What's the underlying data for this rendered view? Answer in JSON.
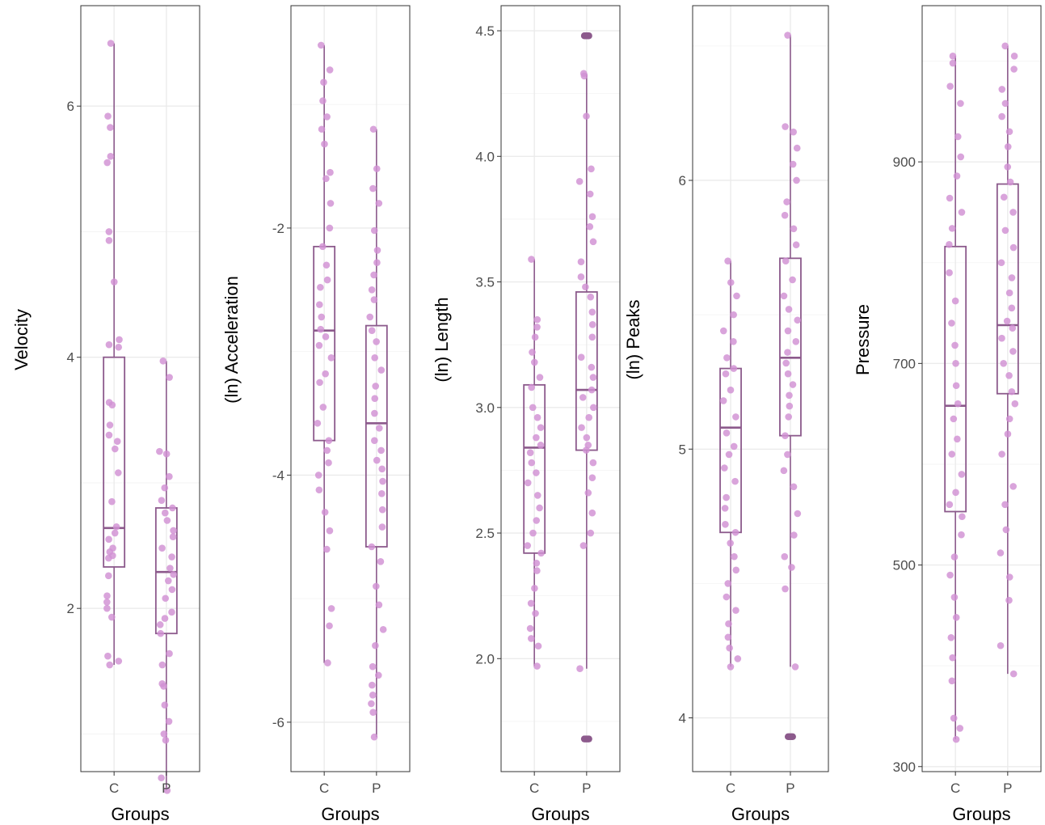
{
  "colors": {
    "box": "#8c5a8c",
    "point": "#d190d3",
    "outlier": "#8c5a8c"
  },
  "chart_data": [
    {
      "type": "box",
      "title": "",
      "xlabel": "Groups",
      "ylabel": "Velocity",
      "categories": [
        "C",
        "P"
      ],
      "ylim": [
        0.7,
        6.8
      ],
      "yticks": [
        2,
        4,
        6
      ],
      "ytick_labels": [
        "2",
        "4",
        "6"
      ],
      "boxes": [
        {
          "group": "C",
          "min": 1.55,
          "q1": 2.33,
          "median": 2.64,
          "q3": 4.0,
          "max": 6.5
        },
        {
          "group": "P",
          "min": 0.55,
          "q1": 1.8,
          "median": 2.29,
          "q3": 2.8,
          "max": 3.97
        }
      ],
      "points": {
        "C": [
          6.5,
          5.92,
          5.83,
          5.6,
          5.55,
          5.0,
          4.93,
          4.6,
          4.14,
          4.1,
          4.08,
          3.64,
          3.62,
          3.46,
          3.38,
          3.33,
          3.27,
          3.08,
          2.85,
          2.65,
          2.6,
          2.55,
          2.48,
          2.45,
          2.42,
          2.4,
          2.26,
          2.1,
          2.05,
          2.0,
          1.93,
          1.62,
          1.58,
          1.55
        ],
        "P": [
          3.97,
          3.84,
          3.25,
          3.23,
          3.05,
          2.96,
          2.86,
          2.8,
          2.76,
          2.7,
          2.62,
          2.57,
          2.48,
          2.41,
          2.32,
          2.27,
          2.22,
          2.15,
          2.08,
          1.97,
          1.92,
          1.87,
          1.8,
          1.64,
          1.55,
          1.4,
          1.38,
          1.23,
          1.1,
          1.0,
          0.95,
          0.65,
          0.55
        ]
      },
      "outliers": {
        "C": [],
        "P": []
      }
    },
    {
      "type": "box",
      "title": "",
      "xlabel": "Groups",
      "ylabel": "(ln) Acceleration",
      "categories": [
        "C",
        "P"
      ],
      "ylim": [
        -6.4,
        -0.2
      ],
      "yticks": [
        -6,
        -4,
        -2
      ],
      "ytick_labels": [
        "-6",
        "-4",
        "-2"
      ],
      "boxes": [
        {
          "group": "C",
          "min": -5.52,
          "q1": -3.72,
          "median": -2.83,
          "q3": -2.15,
          "max": -0.52
        },
        {
          "group": "P",
          "min": -6.12,
          "q1": -4.58,
          "median": -3.58,
          "q3": -2.79,
          "max": -1.2
        }
      ],
      "points": {
        "C": [
          -0.52,
          -0.72,
          -0.82,
          -0.97,
          -1.1,
          -1.2,
          -1.32,
          -1.55,
          -1.6,
          -1.8,
          -2.0,
          -2.15,
          -2.3,
          -2.42,
          -2.48,
          -2.62,
          -2.72,
          -2.82,
          -2.88,
          -2.95,
          -3.05,
          -3.18,
          -3.25,
          -3.45,
          -3.58,
          -3.72,
          -3.8,
          -3.9,
          -4.0,
          -4.12,
          -4.3,
          -4.45,
          -4.6,
          -5.08,
          -5.22,
          -5.52
        ],
        "P": [
          -1.2,
          -1.52,
          -1.68,
          -1.8,
          -2.02,
          -2.18,
          -2.28,
          -2.38,
          -2.5,
          -2.58,
          -2.72,
          -2.83,
          -2.92,
          -3.05,
          -3.15,
          -3.28,
          -3.38,
          -3.5,
          -3.62,
          -3.72,
          -3.8,
          -3.88,
          -3.95,
          -4.05,
          -4.15,
          -4.28,
          -4.42,
          -4.58,
          -4.7,
          -4.9,
          -5.05,
          -5.25,
          -5.38,
          -5.55,
          -5.62,
          -5.7,
          -5.78,
          -5.85,
          -5.92,
          -6.12
        ]
      },
      "outliers": {
        "C": [],
        "P": []
      }
    },
    {
      "type": "box",
      "title": "",
      "xlabel": "Groups",
      "ylabel": "(ln) Length",
      "categories": [
        "C",
        "P"
      ],
      "ylim": [
        1.55,
        4.6
      ],
      "yticks": [
        2.0,
        2.5,
        3.0,
        3.5,
        4.0,
        4.5
      ],
      "ytick_labels": [
        "2.0",
        "2.5",
        "3.0",
        "3.5",
        "4.0",
        "4.5"
      ],
      "boxes": [
        {
          "group": "C",
          "min": 1.97,
          "q1": 2.42,
          "median": 2.84,
          "q3": 3.09,
          "max": 3.59
        },
        {
          "group": "P",
          "min": 1.96,
          "q1": 2.83,
          "median": 3.07,
          "q3": 3.46,
          "max": 4.33
        }
      ],
      "points": {
        "C": [
          3.59,
          3.35,
          3.32,
          3.28,
          3.22,
          3.18,
          3.12,
          3.08,
          3.0,
          2.96,
          2.92,
          2.88,
          2.85,
          2.82,
          2.78,
          2.74,
          2.7,
          2.65,
          2.6,
          2.55,
          2.5,
          2.45,
          2.42,
          2.38,
          2.35,
          2.28,
          2.22,
          2.18,
          2.12,
          2.08,
          2.05,
          1.97
        ],
        "P": [
          4.33,
          4.32,
          4.16,
          3.95,
          3.9,
          3.85,
          3.76,
          3.72,
          3.66,
          3.58,
          3.52,
          3.48,
          3.44,
          3.38,
          3.33,
          3.28,
          3.2,
          3.16,
          3.12,
          3.07,
          3.04,
          3.0,
          2.96,
          2.92,
          2.88,
          2.85,
          2.83,
          2.78,
          2.72,
          2.66,
          2.58,
          2.5,
          2.45,
          1.96
        ]
      },
      "outliers": {
        "C": [],
        "P": [
          4.48,
          1.68
        ]
      }
    },
    {
      "type": "box",
      "title": "",
      "xlabel": "Groups",
      "ylabel": "(ln) Peaks",
      "categories": [
        "C",
        "P"
      ],
      "ylim": [
        3.8,
        6.65
      ],
      "yticks": [
        4,
        5,
        6
      ],
      "ytick_labels": [
        "4",
        "5",
        "6"
      ],
      "boxes": [
        {
          "group": "C",
          "min": 4.19,
          "q1": 4.69,
          "median": 5.08,
          "q3": 5.3,
          "max": 5.7
        },
        {
          "group": "P",
          "min": 4.19,
          "q1": 5.05,
          "median": 5.34,
          "q3": 5.71,
          "max": 6.54
        }
      ],
      "points": {
        "C": [
          5.7,
          5.62,
          5.57,
          5.5,
          5.44,
          5.4,
          5.34,
          5.3,
          5.28,
          5.22,
          5.18,
          5.12,
          5.06,
          5.01,
          4.98,
          4.93,
          4.88,
          4.82,
          4.78,
          4.72,
          4.69,
          4.65,
          4.6,
          4.55,
          4.5,
          4.45,
          4.4,
          4.35,
          4.3,
          4.26,
          4.22,
          4.19
        ],
        "P": [
          6.54,
          6.2,
          6.18,
          6.12,
          6.06,
          6.0,
          5.92,
          5.87,
          5.82,
          5.76,
          5.7,
          5.63,
          5.57,
          5.52,
          5.48,
          5.44,
          5.4,
          5.36,
          5.32,
          5.28,
          5.24,
          5.2,
          5.16,
          5.12,
          5.05,
          4.98,
          4.92,
          4.86,
          4.76,
          4.68,
          4.6,
          4.56,
          4.48,
          4.19
        ]
      },
      "outliers": {
        "C": [],
        "P": [
          3.93
        ]
      }
    },
    {
      "type": "box",
      "title": "",
      "xlabel": "Groups",
      "ylabel": "Pressure",
      "categories": [
        "C",
        "P"
      ],
      "ylim": [
        295,
        1055
      ],
      "yticks": [
        300,
        500,
        700,
        900
      ],
      "ytick_labels": [
        "300",
        "500",
        "700",
        "900"
      ],
      "boxes": [
        {
          "group": "C",
          "min": 327,
          "q1": 553,
          "median": 658,
          "q3": 816,
          "max": 1005
        },
        {
          "group": "P",
          "min": 392,
          "q1": 670,
          "median": 738,
          "q3": 878,
          "max": 1015
        }
      ],
      "points": {
        "C": [
          1005,
          998,
          975,
          958,
          925,
          905,
          886,
          864,
          850,
          834,
          818,
          790,
          762,
          740,
          718,
          700,
          678,
          660,
          645,
          625,
          610,
          590,
          572,
          560,
          548,
          530,
          508,
          490,
          468,
          448,
          428,
          408,
          385,
          348,
          338,
          327
        ],
        "P": [
          1015,
          1005,
          992,
          972,
          958,
          945,
          930,
          915,
          895,
          880,
          865,
          850,
          832,
          815,
          800,
          785,
          770,
          755,
          742,
          735,
          725,
          712,
          700,
          688,
          672,
          660,
          645,
          630,
          610,
          578,
          560,
          535,
          512,
          488,
          465,
          420,
          392
        ]
      },
      "outliers": {
        "C": [],
        "P": []
      }
    }
  ]
}
